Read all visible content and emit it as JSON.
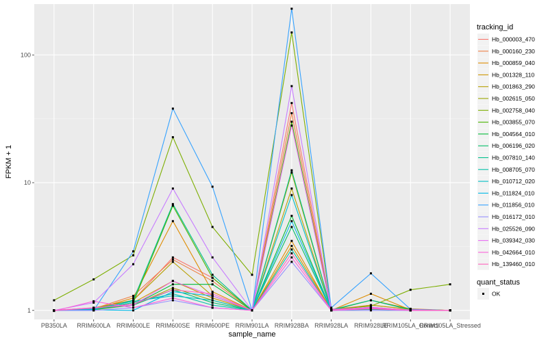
{
  "chart_data": {
    "type": "line",
    "xlabel": "sample_name",
    "ylabel": "FPKM + 1",
    "y_scale": "log10",
    "ylim": [
      0.85,
      250
    ],
    "y_ticks": [
      1,
      10,
      100
    ],
    "y_tick_labels": [
      "1",
      "10",
      "100"
    ],
    "grid": true,
    "legend_placement": "right",
    "categories": [
      "PB350LA",
      "RRIM600LA",
      "RRIM600LE",
      "RRIM600SE",
      "RRIM600PE",
      "RRIM901LA",
      "RRIM928BA",
      "RRIM928LA",
      "RRIM928LE",
      "RRIM105LA_Control",
      "RRIM105LA_Stressed"
    ],
    "series": [
      {
        "name": "Hb_000003_470",
        "color": "#F8766D",
        "values": [
          1,
          1.05,
          1.2,
          2.6,
          1.8,
          1,
          42,
          1.02,
          1.1,
          1.02,
          1
        ]
      },
      {
        "name": "Hb_000160_230",
        "color": "#EE8044",
        "values": [
          1,
          1.03,
          1.3,
          2.5,
          1.7,
          1,
          35,
          1.01,
          1.2,
          1.03,
          1
        ]
      },
      {
        "name": "Hb_000859_040",
        "color": "#DE8C00",
        "values": [
          1,
          1.02,
          1.25,
          5.0,
          1.4,
          1,
          3.5,
          1,
          1.35,
          1.01,
          1
        ]
      },
      {
        "name": "Hb_001328_110",
        "color": "#CD9600",
        "values": [
          1,
          1.02,
          1.15,
          1.7,
          1.25,
          1,
          3.2,
          1.01,
          1.05,
          1,
          1
        ]
      },
      {
        "name": "Hb_001863_290",
        "color": "#B79F00",
        "values": [
          1,
          1.04,
          1.2,
          2.4,
          1.3,
          1,
          9.0,
          1,
          1.1,
          1.02,
          1
        ]
      },
      {
        "name": "Hb_002615_050",
        "color": "#9CA700",
        "values": [
          1,
          1.01,
          1.1,
          1.5,
          1.2,
          1,
          12.0,
          1,
          1.05,
          1,
          1
        ]
      },
      {
        "name": "Hb_002758_040",
        "color": "#7CAE00",
        "values": [
          1.2,
          1.75,
          2.7,
          22.7,
          4.5,
          1.9,
          150,
          1.02,
          1.08,
          1.45,
          1.6
        ]
      },
      {
        "name": "Hb_003855_070",
        "color": "#49B500",
        "values": [
          1,
          1.02,
          1.15,
          6.6,
          1.8,
          1,
          30,
          1,
          1.2,
          1.02,
          1
        ]
      },
      {
        "name": "Hb_004564_010",
        "color": "#00BA38",
        "values": [
          1,
          1.03,
          1.1,
          1.6,
          1.6,
          1,
          5.5,
          1,
          1.03,
          1,
          1
        ]
      },
      {
        "name": "Hb_006196_020",
        "color": "#00BE67",
        "values": [
          1,
          1.02,
          1.1,
          1.45,
          1.15,
          1,
          4.5,
          1,
          1.02,
          1,
          1
        ]
      },
      {
        "name": "Hb_007810_140",
        "color": "#00C08B",
        "values": [
          1,
          1.01,
          1.2,
          6.8,
          1.9,
          1,
          12.5,
          1.01,
          1.2,
          1.01,
          1
        ]
      },
      {
        "name": "Hb_008705_070",
        "color": "#00C1A9",
        "values": [
          1,
          1.02,
          1.15,
          1.35,
          1.1,
          1,
          3.0,
          1,
          1.04,
          1,
          1
        ]
      },
      {
        "name": "Hb_010712_020",
        "color": "#00BFC4",
        "values": [
          1,
          1.03,
          1.18,
          1.3,
          1.2,
          1,
          8.0,
          1,
          1.05,
          1,
          1
        ]
      },
      {
        "name": "Hb_011824_010",
        "color": "#00B8E7",
        "values": [
          1,
          1.01,
          1.0,
          1.4,
          1.3,
          1,
          5.0,
          1,
          1.06,
          1,
          1
        ]
      },
      {
        "name": "Hb_011856_010",
        "color": "#35A2FF",
        "values": [
          1,
          1.0,
          2.9,
          38,
          9.3,
          1,
          230,
          1.05,
          1.95,
          1.02,
          1
        ]
      },
      {
        "name": "Hb_016172_010",
        "color": "#9590FF",
        "values": [
          1,
          1.0,
          1.05,
          1.2,
          1.05,
          1,
          2.4,
          1,
          1.0,
          1,
          1
        ]
      },
      {
        "name": "Hb_025526_090",
        "color": "#C77CFF",
        "values": [
          1,
          1.15,
          2.3,
          9.0,
          2.6,
          1,
          57,
          1.02,
          1.05,
          1.01,
          1
        ]
      },
      {
        "name": "Hb_039342_030",
        "color": "#E76BF3",
        "values": [
          1,
          1.05,
          1.1,
          1.7,
          1.3,
          1,
          28,
          1,
          1.06,
          1,
          1
        ]
      },
      {
        "name": "Hb_042664_010",
        "color": "#FA62DB",
        "values": [
          0.99,
          1.18,
          1.05,
          1.25,
          1.05,
          1,
          2.6,
          1,
          1.03,
          1,
          1
        ]
      },
      {
        "name": "Hb_139460_010",
        "color": "#FF62BC",
        "values": [
          1,
          1.04,
          1.12,
          1.45,
          1.35,
          1,
          2.8,
          1.01,
          1.04,
          1.01,
          1
        ]
      }
    ],
    "legends": {
      "color_title": "tracking_id",
      "shape_title": "quant_status",
      "shape_entries": [
        "OK"
      ]
    }
  }
}
